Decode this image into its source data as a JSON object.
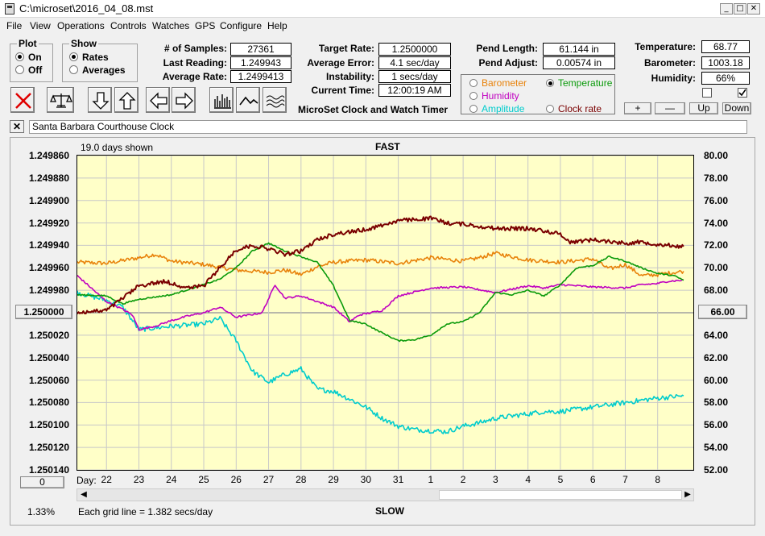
{
  "window": {
    "title": "C:\\microset\\2016_04_08.mst"
  },
  "menu": [
    "File",
    "View",
    "Operations",
    "Controls",
    "Watches",
    "GPS",
    "Configure",
    "Help"
  ],
  "plot_group": {
    "title": "Plot",
    "options": [
      "On",
      "Off"
    ],
    "selected": "On"
  },
  "show_group": {
    "title": "Show",
    "options": [
      "Rates",
      "Averages"
    ],
    "selected": "Rates"
  },
  "stats": {
    "samples_label": "# of Samples:",
    "samples": "27361",
    "last_reading_label": "Last Reading:",
    "last_reading": "1.249943",
    "average_rate_label": "Average Rate:",
    "average_rate": "1.2499413",
    "target_rate_label": "Target Rate:",
    "target_rate": "1.2500000",
    "average_error_label": "Average Error:",
    "average_error": "4.1 sec/day",
    "instability_label": "Instability:",
    "instability": "1 secs/day",
    "current_time_label": "Current Time:",
    "current_time": "12:00:19 AM",
    "pend_length_label": "Pend Length:",
    "pend_length": "61.144 in",
    "pend_adjust_label": "Pend Adjust:",
    "pend_adjust": "0.00574 in",
    "temperature_label": "Temperature:",
    "temperature": "68.77",
    "barometer_label": "Barometer:",
    "barometer": "1003.18",
    "humidity_label": "Humidity:",
    "humidity": "66%"
  },
  "app_name": "MicroSet Clock and Watch Timer",
  "legend": {
    "items": [
      {
        "label": "Barometer",
        "color": "#e8820a",
        "selected": false
      },
      {
        "label": "Temperature",
        "color": "#0a9a0a",
        "selected": true
      },
      {
        "label": "Humidity",
        "color": "#c000c0",
        "selected": false
      },
      {
        "label": "Clock rate",
        "color": "#7a0000",
        "selected": false
      },
      {
        "label": "Amplitude",
        "color": "#00cccc",
        "selected": false
      }
    ]
  },
  "small_buttons": [
    "+",
    "—",
    "Up",
    "Down"
  ],
  "toolbar_icons": [
    "clear-icon",
    "balance-scale-icon",
    "arrow-down-icon",
    "arrow-up-icon",
    "arrow-left-icon",
    "arrow-right-icon",
    "bar-graph-icon",
    "line-graph-icon",
    "smooth-graph-icon"
  ],
  "watch_name": "Santa Barbara Courthouse Clock",
  "chart": {
    "days_shown": "19.0 days shown",
    "fast_label": "FAST",
    "slow_label": "SLOW",
    "percent": "1.33%",
    "grid_note": "Each grid line = 1.382 secs/day",
    "day_label": "Day:",
    "left_center_value": "1.250000",
    "right_center_value": "66.00",
    "left_bottom_button": "0"
  },
  "chart_data": {
    "type": "line",
    "x": [
      "22",
      "23",
      "24",
      "25",
      "26",
      "27",
      "28",
      "29",
      "30",
      "31",
      "1",
      "2",
      "3",
      "4",
      "5",
      "6",
      "7",
      "8"
    ],
    "y_left_ticks": [
      "1.249860",
      "1.249880",
      "1.249900",
      "1.249920",
      "1.249940",
      "1.249960",
      "1.249980",
      "1.250000",
      "1.250020",
      "1.250040",
      "1.250060",
      "1.250080",
      "1.250100",
      "1.250120",
      "1.250140"
    ],
    "y_right_ticks": [
      "80.00",
      "78.00",
      "76.00",
      "74.00",
      "72.00",
      "70.00",
      "68.00",
      "66.00",
      "64.00",
      "62.00",
      "60.00",
      "58.00",
      "56.00",
      "54.00",
      "52.00"
    ],
    "ylim_left": [
      1.24986,
      1.25014
    ],
    "ylim_right": [
      52,
      80
    ],
    "xlim": [
      21.1,
      40.1
    ],
    "grid": true,
    "series": [
      {
        "name": "Clock rate",
        "axis": "left",
        "color": "#7a0000",
        "jitter": 1.8e-06,
        "points": [
          [
            21.1,
            1.25
          ],
          [
            22,
            1.249998
          ],
          [
            23,
            1.249976
          ],
          [
            23.8,
            1.249972
          ],
          [
            24.5,
            1.249978
          ],
          [
            25,
            1.249976
          ],
          [
            25.5,
            1.24996
          ],
          [
            26,
            1.249944
          ],
          [
            26.5,
            1.24994
          ],
          [
            27,
            1.249943
          ],
          [
            27.5,
            1.249948
          ],
          [
            28,
            1.249945
          ],
          [
            28.5,
            1.249935
          ],
          [
            29,
            1.24993
          ],
          [
            29.5,
            1.249928
          ],
          [
            30,
            1.249926
          ],
          [
            30.5,
            1.249922
          ],
          [
            31,
            1.249918
          ],
          [
            32,
            1.249916
          ],
          [
            32.5,
            1.24992
          ],
          [
            33,
            1.249921
          ],
          [
            34,
            1.249925
          ],
          [
            35,
            1.249925
          ],
          [
            35.5,
            1.249927
          ],
          [
            36,
            1.24993
          ],
          [
            36.3,
            1.249937
          ],
          [
            37,
            1.249935
          ],
          [
            38,
            1.249938
          ],
          [
            38.5,
            1.249937
          ],
          [
            39,
            1.249939
          ],
          [
            39.8,
            1.249941
          ]
        ]
      },
      {
        "name": "Barometer",
        "axis": "right",
        "color": "#e8820a",
        "jitter": 0.18,
        "points": [
          [
            21.1,
            70.5
          ],
          [
            22,
            70.4
          ],
          [
            23,
            70.9
          ],
          [
            23.5,
            71.2
          ],
          [
            24,
            70.6
          ],
          [
            25,
            70.3
          ],
          [
            26,
            69.8
          ],
          [
            27,
            69.6
          ],
          [
            27.5,
            69.8
          ],
          [
            28,
            69.4
          ],
          [
            28.5,
            70.1
          ],
          [
            29,
            70.5
          ],
          [
            30,
            70.7
          ],
          [
            31,
            70.4
          ],
          [
            32,
            70.9
          ],
          [
            33,
            70.6
          ],
          [
            33.5,
            70.9
          ],
          [
            34,
            71.3
          ],
          [
            35,
            70.7
          ],
          [
            36,
            70.5
          ],
          [
            37,
            70.8
          ],
          [
            37.5,
            69.9
          ],
          [
            38,
            70.3
          ],
          [
            38.5,
            69.3
          ],
          [
            39,
            69.4
          ],
          [
            39.8,
            69.7
          ]
        ]
      },
      {
        "name": "Temperature",
        "axis": "right",
        "color": "#0a9a0a",
        "jitter": 0.06,
        "points": [
          [
            21.1,
            67.6
          ],
          [
            22,
            67.5
          ],
          [
            22.5,
            66.8
          ],
          [
            23,
            67.2
          ],
          [
            24,
            67.6
          ],
          [
            25,
            68.5
          ],
          [
            25.5,
            69.0
          ],
          [
            26,
            70.0
          ],
          [
            26.5,
            71.5
          ],
          [
            27,
            72.2
          ],
          [
            27.5,
            71.5
          ],
          [
            28,
            71.0
          ],
          [
            28.5,
            70.5
          ],
          [
            29,
            68.4
          ],
          [
            29.5,
            65.3
          ],
          [
            30,
            65.0
          ],
          [
            30.3,
            64.5
          ],
          [
            31,
            63.5
          ],
          [
            31.5,
            63.6
          ],
          [
            32,
            64.0
          ],
          [
            32.5,
            65.0
          ],
          [
            33,
            65.2
          ],
          [
            33.5,
            66.0
          ],
          [
            34,
            67.8
          ],
          [
            34.5,
            67.6
          ],
          [
            35,
            68.0
          ],
          [
            35.5,
            67.5
          ],
          [
            36,
            68.5
          ],
          [
            36.5,
            70.0
          ],
          [
            37,
            70.2
          ],
          [
            37.5,
            71.0
          ],
          [
            38,
            70.6
          ],
          [
            38.5,
            70.0
          ],
          [
            39,
            69.5
          ],
          [
            39.5,
            69.3
          ],
          [
            39.8,
            68.9
          ]
        ]
      },
      {
        "name": "Humidity",
        "axis": "right",
        "color": "#c000c0",
        "jitter": 0.08,
        "points": [
          [
            21.1,
            69.3
          ],
          [
            22,
            67.0
          ],
          [
            22.5,
            66.3
          ],
          [
            22.8,
            65.8
          ],
          [
            23,
            64.5
          ],
          [
            23.5,
            64.8
          ],
          [
            24,
            65.3
          ],
          [
            24.5,
            65.7
          ],
          [
            25,
            66.0
          ],
          [
            25.5,
            66.5
          ],
          [
            26,
            65.6
          ],
          [
            26.8,
            66.0
          ],
          [
            27.2,
            68.5
          ],
          [
            27.5,
            67.3
          ],
          [
            28,
            67.5
          ],
          [
            28.5,
            67.0
          ],
          [
            29,
            66.5
          ],
          [
            29.5,
            65.2
          ],
          [
            29.8,
            65.8
          ],
          [
            30.5,
            66.2
          ],
          [
            31,
            67.5
          ],
          [
            32,
            68.2
          ],
          [
            33,
            68.3
          ],
          [
            34,
            67.8
          ],
          [
            35,
            68.4
          ],
          [
            35.5,
            68.2
          ],
          [
            36,
            68.5
          ],
          [
            37,
            68.3
          ],
          [
            38,
            68.2
          ],
          [
            38.5,
            68.5
          ],
          [
            39,
            68.6
          ],
          [
            39.3,
            68.8
          ],
          [
            39.8,
            68.9
          ]
        ]
      },
      {
        "name": "Amplitude",
        "axis": "right",
        "color": "#00cccc",
        "jitter": 0.22,
        "points": [
          [
            21.1,
            67.8
          ],
          [
            22,
            67.1
          ],
          [
            22.5,
            66.5
          ],
          [
            23,
            64.5
          ],
          [
            24,
            64.8
          ],
          [
            25,
            65.0
          ],
          [
            25.5,
            65.5
          ],
          [
            26,
            63.5
          ],
          [
            26.5,
            60.8
          ],
          [
            27,
            59.8
          ],
          [
            27.5,
            60.5
          ],
          [
            28,
            61.0
          ],
          [
            28.5,
            59.2
          ],
          [
            29,
            59.0
          ],
          [
            29.5,
            58.3
          ],
          [
            30,
            57.6
          ],
          [
            30.5,
            56.6
          ],
          [
            31,
            55.9
          ],
          [
            31.5,
            55.6
          ],
          [
            32,
            55.5
          ],
          [
            32.5,
            55.4
          ],
          [
            33,
            55.9
          ],
          [
            33.5,
            56.2
          ],
          [
            34,
            56.6
          ],
          [
            35,
            57.0
          ],
          [
            35.5,
            57.2
          ],
          [
            36,
            57.2
          ],
          [
            37,
            57.6
          ],
          [
            37.5,
            57.8
          ],
          [
            38,
            58.0
          ],
          [
            38.5,
            58.2
          ],
          [
            39,
            58.4
          ],
          [
            39.8,
            58.6
          ]
        ]
      }
    ]
  }
}
